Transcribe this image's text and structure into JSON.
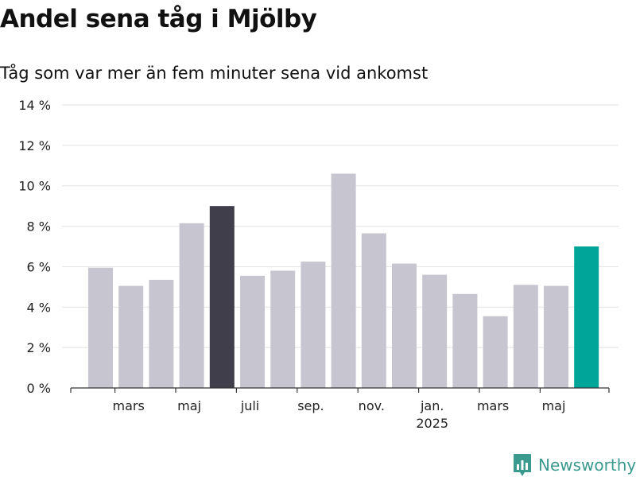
{
  "colors": {
    "default_bar": "#c7c6d0",
    "highlight_dark": "#403e4b",
    "highlight_accent": "#00a599",
    "grid": "#e2e2e2",
    "axis": "#333333",
    "text": "#222222",
    "brand": "#3a9a8e"
  },
  "brand": {
    "name": "Newsworthy",
    "icon": "newsworthy-logo-icon"
  },
  "chart_data": {
    "type": "bar",
    "title": "Andel sena tåg i Mjölby",
    "subtitle": "Tåg som var mer än fem minuter sena vid ankomst",
    "xlabel": "",
    "ylabel": "",
    "y_unit": "%",
    "ylim": [
      0,
      14
    ],
    "yticks": [
      0,
      2,
      4,
      6,
      8,
      10,
      12,
      14
    ],
    "ytick_labels": [
      "0 %",
      "2 %",
      "4 %",
      "6 %",
      "8 %",
      "10 %",
      "12 %",
      "14 %"
    ],
    "grid": true,
    "legend": "none",
    "categories": [
      "2024-02",
      "2024-03",
      "2024-04",
      "2024-05",
      "2024-06",
      "2024-07",
      "2024-08",
      "2024-09",
      "2024-10",
      "2024-11",
      "2024-12",
      "2025-01",
      "2025-02",
      "2025-03",
      "2025-04",
      "2025-05",
      "2025-06"
    ],
    "values": [
      5.95,
      5.05,
      5.35,
      8.15,
      9.0,
      5.55,
      5.8,
      6.25,
      10.6,
      7.65,
      6.15,
      5.6,
      4.65,
      3.55,
      5.1,
      5.05,
      7.0
    ],
    "highlights": {
      "2024-06": "highlight_dark",
      "2025-06": "highlight_accent"
    },
    "xtick_labels": [
      {
        "category": "2024-03",
        "label": "mars"
      },
      {
        "category": "2024-05",
        "label": "maj"
      },
      {
        "category": "2024-07",
        "label": "juli"
      },
      {
        "category": "2024-09",
        "label": "sep."
      },
      {
        "category": "2024-11",
        "label": "nov."
      },
      {
        "category": "2025-01",
        "label": "jan.",
        "sublabel": "2025"
      },
      {
        "category": "2025-03",
        "label": "mars"
      },
      {
        "category": "2025-05",
        "label": "maj"
      }
    ]
  }
}
